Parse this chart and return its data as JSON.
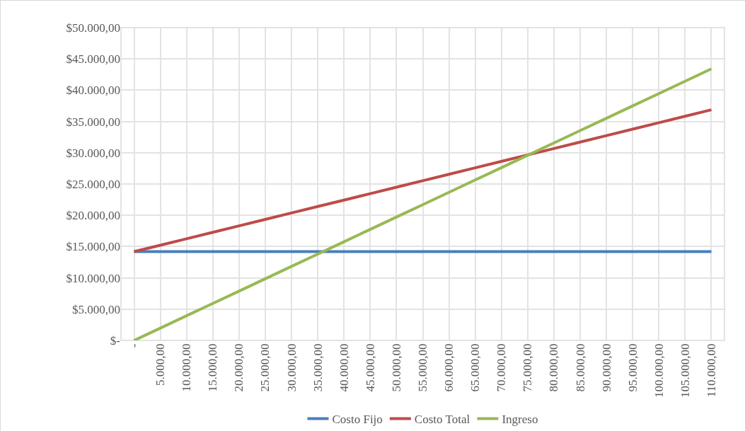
{
  "chart_data": {
    "type": "line",
    "categories": [
      "-",
      "5.000,00",
      "10.000,00",
      "15.000,00",
      "20.000,00",
      "25.000,00",
      "30.000,00",
      "35.000,00",
      "40.000,00",
      "45.000,00",
      "50.000,00",
      "55.000,00",
      "60.000,00",
      "65.000,00",
      "70.000,00",
      "75.000,00",
      "80.000,00",
      "85.000,00",
      "90.000,00",
      "95.000,00",
      "100.000,00",
      "105.000,00",
      "110.000,00"
    ],
    "series": [
      {
        "name": "Costo Fijo",
        "color": "#4a7ebb",
        "values": [
          14200,
          14200,
          14200,
          14200,
          14200,
          14200,
          14200,
          14200,
          14200,
          14200,
          14200,
          14200,
          14200,
          14200,
          14200,
          14200,
          14200,
          14200,
          14200,
          14200,
          14200,
          14200,
          14200
        ]
      },
      {
        "name": "Costo Total",
        "color": "#be4b48",
        "values": [
          14200,
          15230,
          16260,
          17290,
          18320,
          19350,
          20380,
          21410,
          22440,
          23470,
          24500,
          25530,
          26560,
          27590,
          28620,
          29650,
          30680,
          31710,
          32740,
          33770,
          34800,
          35830,
          36860
        ]
      },
      {
        "name": "Ingreso",
        "color": "#98b954",
        "values": [
          0,
          1970,
          3950,
          5920,
          7890,
          9870,
          11840,
          13810,
          15780,
          17760,
          19730,
          21700,
          23680,
          25650,
          27620,
          29600,
          31570,
          33540,
          35510,
          37490,
          39460,
          41430,
          43410
        ]
      }
    ],
    "ylim": [
      0,
      50000
    ],
    "yticks": [
      {
        "value": 0,
        "label": "$-"
      },
      {
        "value": 5000,
        "label": "$5.000,00"
      },
      {
        "value": 10000,
        "label": "$10.000,00"
      },
      {
        "value": 15000,
        "label": "$15.000,00"
      },
      {
        "value": 20000,
        "label": "$20.000,00"
      },
      {
        "value": 25000,
        "label": "$25.000,00"
      },
      {
        "value": 30000,
        "label": "$30.000,00"
      },
      {
        "value": 35000,
        "label": "$35.000,00"
      },
      {
        "value": 40000,
        "label": "$40.000,00"
      },
      {
        "value": 45000,
        "label": "$45.000,00"
      },
      {
        "value": 50000,
        "label": "$50.000,00"
      }
    ],
    "grid": true,
    "legend": "bottom",
    "marker": "none",
    "line_style": "solid"
  }
}
